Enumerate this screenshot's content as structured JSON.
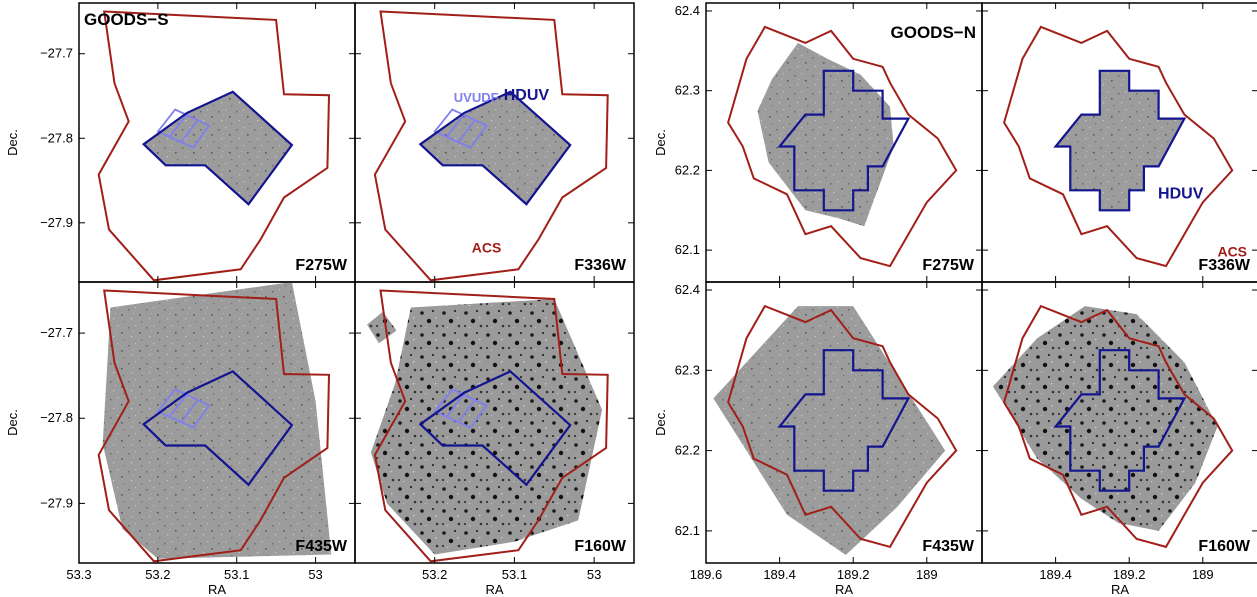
{
  "colors": {
    "acs": "#a11f18",
    "hduv": "#13148f",
    "uvudf": "#7f7ff0",
    "image": "#9c9c9c",
    "frame": "#000000"
  },
  "chart_data": [
    {
      "type": "map-panel-grid",
      "field": "GOODS−S",
      "xlabel": "RA",
      "ylabel": "Dec.",
      "xlim": [
        53.3,
        52.95
      ],
      "ylim": [
        -27.97,
        -27.64
      ],
      "xticks": [
        53.3,
        53.2,
        53.1,
        53.0
      ],
      "xtick_labels": [
        "53.3",
        "53.2",
        "53.1",
        "53"
      ],
      "yticks": [
        -27.7,
        -27.8,
        -27.9
      ],
      "ytick_labels": [
        "−27.7",
        "−27.8",
        "−27.9"
      ],
      "panels": [
        "F275W",
        "F336W",
        "F435W",
        "F160W"
      ],
      "annotations": {
        "uvudf": "UVUDF",
        "hduv": "HDUV",
        "acs": "ACS"
      },
      "footprints": {
        "acs": [
          [
            53.268,
            -27.65
          ],
          [
            53.05,
            -27.66
          ],
          [
            53.04,
            -27.748
          ],
          [
            52.983,
            -27.749
          ],
          [
            52.985,
            -27.835
          ],
          [
            53.04,
            -27.87
          ],
          [
            53.07,
            -27.92
          ],
          [
            53.095,
            -27.955
          ],
          [
            53.205,
            -27.968
          ],
          [
            53.262,
            -27.908
          ],
          [
            53.275,
            -27.843
          ],
          [
            53.237,
            -27.78
          ],
          [
            53.255,
            -27.735
          ],
          [
            53.268,
            -27.65
          ]
        ],
        "hduv": [
          [
            53.218,
            -27.807
          ],
          [
            53.163,
            -27.77
          ],
          [
            53.105,
            -27.745
          ],
          [
            53.03,
            -27.808
          ],
          [
            53.085,
            -27.878
          ],
          [
            53.14,
            -27.832
          ],
          [
            53.19,
            -27.832
          ],
          [
            53.218,
            -27.807
          ]
        ],
        "uvudf": [
          [
            53.2,
            -27.792
          ],
          [
            53.178,
            -27.766
          ],
          [
            53.135,
            -27.785
          ],
          [
            53.155,
            -27.811
          ],
          [
            53.2,
            -27.792
          ]
        ]
      }
    },
    {
      "type": "map-panel-grid",
      "field": "GOODS−N",
      "xlabel": "RA",
      "ylabel": "Dec.",
      "xlim": [
        189.6,
        188.85
      ],
      "ylim": [
        62.06,
        62.41
      ],
      "xticks": [
        189.6,
        189.4,
        189.2,
        189.0
      ],
      "xtick_labels": [
        "189.6",
        "189.4",
        "189.2",
        "189"
      ],
      "yticks": [
        62.1,
        62.2,
        62.3,
        62.4
      ],
      "ytick_labels": [
        "62.1",
        "62.2",
        "62.3",
        "62.4"
      ],
      "panels": [
        "F275W",
        "F336W",
        "F435W",
        "F160W"
      ],
      "annotations": {
        "hduv": "HDUV",
        "acs": "ACS"
      },
      "footprints": {
        "acs": [
          [
            189.54,
            62.26
          ],
          [
            189.49,
            62.34
          ],
          [
            189.44,
            62.38
          ],
          [
            189.33,
            62.36
          ],
          [
            189.26,
            62.375
          ],
          [
            189.2,
            62.34
          ],
          [
            189.12,
            62.33
          ],
          [
            189.1,
            62.31
          ],
          [
            189.05,
            62.27
          ],
          [
            188.97,
            62.24
          ],
          [
            188.92,
            62.2
          ],
          [
            189.0,
            62.16
          ],
          [
            189.05,
            62.12
          ],
          [
            189.1,
            62.08
          ],
          [
            189.18,
            62.09
          ],
          [
            189.26,
            62.13
          ],
          [
            189.33,
            62.12
          ],
          [
            189.38,
            62.17
          ],
          [
            189.47,
            62.19
          ],
          [
            189.5,
            62.23
          ],
          [
            189.54,
            62.26
          ]
        ],
        "hduv": [
          [
            189.33,
            62.27
          ],
          [
            189.28,
            62.27
          ],
          [
            189.28,
            62.325
          ],
          [
            189.2,
            62.325
          ],
          [
            189.2,
            62.3
          ],
          [
            189.12,
            62.3
          ],
          [
            189.12,
            62.265
          ],
          [
            189.05,
            62.265
          ],
          [
            189.12,
            62.205
          ],
          [
            189.16,
            62.205
          ],
          [
            189.16,
            62.175
          ],
          [
            189.2,
            62.175
          ],
          [
            189.2,
            62.15
          ],
          [
            189.28,
            62.15
          ],
          [
            189.28,
            62.175
          ],
          [
            189.36,
            62.175
          ],
          [
            189.36,
            62.23
          ],
          [
            189.4,
            62.23
          ],
          [
            189.33,
            62.27
          ]
        ]
      }
    }
  ]
}
